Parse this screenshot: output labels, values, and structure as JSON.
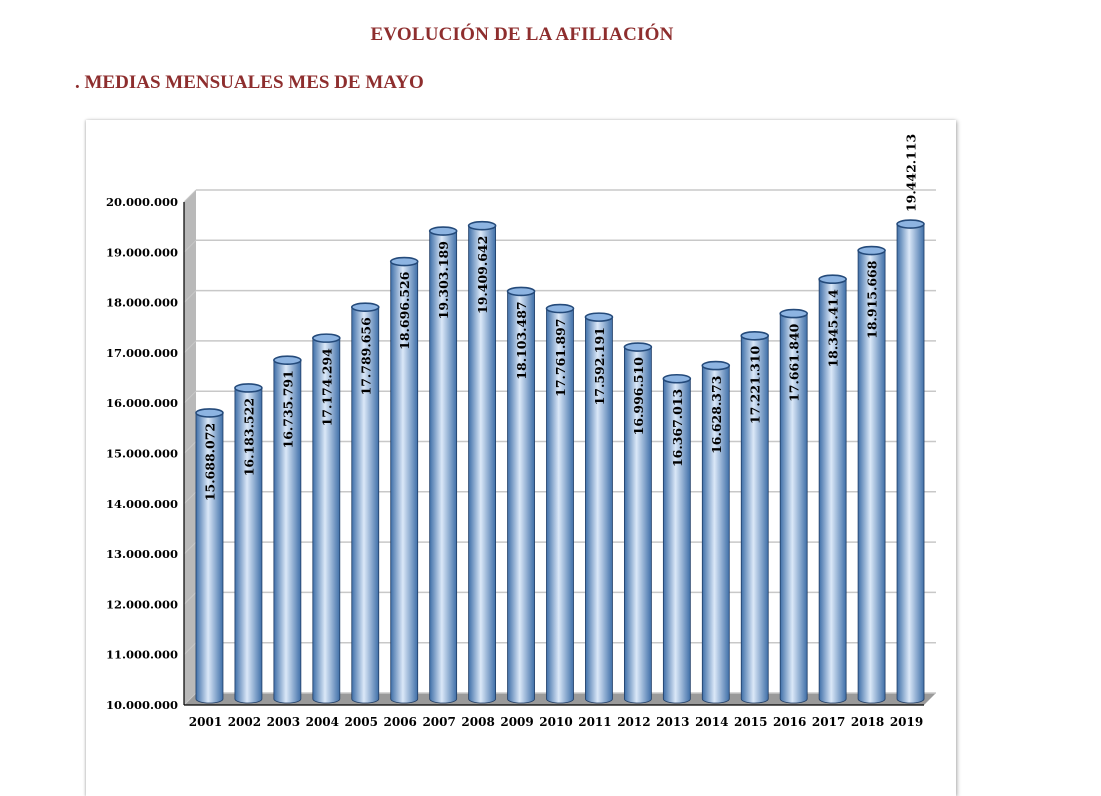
{
  "header": {
    "title": "EVOLUCIÓN DE LA AFILIACIÓN",
    "subtitle": ". MEDIAS MENSUALES MES DE MAYO"
  },
  "colors": {
    "title": "#8e2e2e",
    "bar_light": "#dbe8f8",
    "bar_mid": "#8db4e2",
    "bar_dark": "#3f6fa8",
    "bar_top": "#244a7a",
    "grid": "#c8c8c8"
  },
  "chart_data": {
    "type": "bar",
    "title": "",
    "xlabel": "",
    "ylabel": "",
    "ylim": [
      10000000,
      20000000
    ],
    "y_ticks": [
      10000000,
      11000000,
      12000000,
      13000000,
      14000000,
      15000000,
      16000000,
      17000000,
      18000000,
      19000000,
      20000000
    ],
    "y_tick_labels": [
      "10.000.000",
      "11.000.000",
      "12.000.000",
      "13.000.000",
      "14.000.000",
      "15.000.000",
      "16.000.000",
      "17.000.000",
      "18.000.000",
      "19.000.000",
      "20.000.000"
    ],
    "grid": true,
    "categories": [
      "2001",
      "2002",
      "2003",
      "2004",
      "2005",
      "2006",
      "2007",
      "2008",
      "2009",
      "2010",
      "2011",
      "2012",
      "2013",
      "2014",
      "2015",
      "2016",
      "2017",
      "2018",
      "2019"
    ],
    "values": [
      15688072,
      16183522,
      16735791,
      17174294,
      17789656,
      18696526,
      19303189,
      19409642,
      18103487,
      17761897,
      17592191,
      16996510,
      16367013,
      16628373,
      17221310,
      17661840,
      18345414,
      18915668,
      19442113
    ],
    "data_labels": [
      "15.688.072",
      "16.183.522",
      "16.735.791",
      "17.174.294",
      "17.789.656",
      "18.696.526",
      "19.303.189",
      "19.409.642",
      "18.103.487",
      "17.761.897",
      "17.592.191",
      "16.996.510",
      "16.367.013",
      "16.628.373",
      "17.221.310",
      "17.661.840",
      "18.345.414",
      "18.915.668",
      "19.442.113"
    ]
  }
}
